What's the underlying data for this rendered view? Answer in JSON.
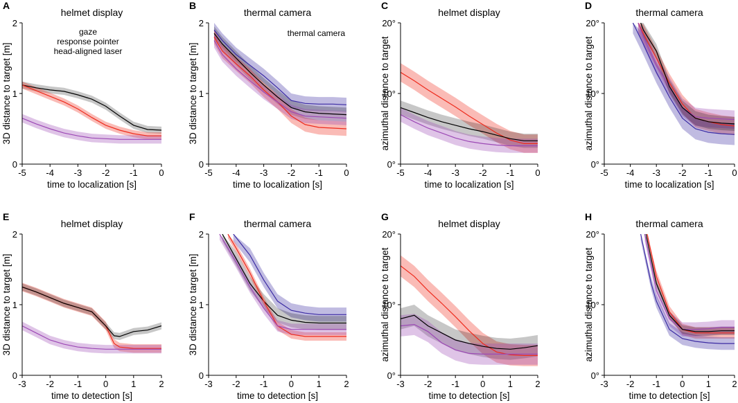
{
  "colors": {
    "gaze": "#000000",
    "pointer": "#ee2b1d",
    "laser": "#9c49b5",
    "camera": "#3b2ba3"
  },
  "legend_entries": [
    "gaze",
    "response pointer",
    "head-aligned laser"
  ],
  "chart_data": [
    {
      "panel": "A",
      "type": "line",
      "title": "helmet display",
      "xlabel": "time to localization [s]",
      "ylabel": "3D distance to target [m]",
      "xlim": [
        -5,
        0
      ],
      "ylim": [
        0,
        2
      ],
      "xticks": [
        "-5",
        "-4",
        "-3",
        "-2",
        "-1",
        "0"
      ],
      "yticks": [
        "0",
        "1",
        "2"
      ],
      "legend": [
        "gaze",
        "response pointer",
        "head-aligned laser"
      ],
      "series": [
        {
          "name": "gaze",
          "color": "gaze",
          "x": [
            -5,
            -4.5,
            -4,
            -3.5,
            -3,
            -2.5,
            -2,
            -1.5,
            -1,
            -0.5,
            0
          ],
          "values": [
            1.12,
            1.08,
            1.05,
            1.03,
            0.98,
            0.92,
            0.82,
            0.68,
            0.55,
            0.49,
            0.48
          ],
          "band": 0.05
        },
        {
          "name": "response pointer",
          "color": "pointer",
          "x": [
            -5,
            -4.5,
            -4,
            -3.5,
            -3,
            -2.5,
            -2,
            -1.5,
            -1,
            -0.5,
            0
          ],
          "values": [
            1.12,
            1.04,
            0.96,
            0.88,
            0.78,
            0.66,
            0.55,
            0.48,
            0.43,
            0.4,
            0.4
          ],
          "band": 0.05
        },
        {
          "name": "head-aligned laser",
          "color": "laser",
          "x": [
            -5,
            -4.5,
            -4,
            -3.5,
            -3,
            -2.5,
            -2,
            -1.5,
            -1,
            -0.5,
            0
          ],
          "values": [
            0.65,
            0.57,
            0.5,
            0.44,
            0.4,
            0.37,
            0.36,
            0.35,
            0.35,
            0.35,
            0.35
          ],
          "band": 0.06
        }
      ]
    },
    {
      "panel": "B",
      "type": "line",
      "title": "thermal camera",
      "xlabel": "time to localization [s]",
      "ylabel": "3D distance to target [m]",
      "xlim": [
        -5,
        0
      ],
      "ylim": [
        0,
        2
      ],
      "xticks": [
        "-5",
        "-4",
        "-3",
        "-2",
        "-1",
        "0"
      ],
      "yticks": [
        "0",
        "1",
        "2"
      ],
      "legend": [
        "thermal camera"
      ],
      "series": [
        {
          "name": "thermal camera",
          "color": "camera",
          "x": [
            -4.8,
            -4.5,
            -4,
            -3.5,
            -3,
            -2.5,
            -2,
            -1.5,
            -1,
            -0.5,
            0
          ],
          "values": [
            1.9,
            1.75,
            1.55,
            1.4,
            1.25,
            1.08,
            0.9,
            0.86,
            0.85,
            0.85,
            0.84
          ],
          "band": 0.1
        },
        {
          "name": "gaze",
          "color": "gaze",
          "x": [
            -4.8,
            -4.5,
            -4,
            -3.5,
            -3,
            -2.5,
            -2,
            -1.5,
            -1,
            -0.5,
            0
          ],
          "values": [
            1.85,
            1.7,
            1.5,
            1.3,
            1.12,
            0.95,
            0.8,
            0.74,
            0.72,
            0.71,
            0.7
          ],
          "band": 0.1
        },
        {
          "name": "response pointer",
          "color": "pointer",
          "x": [
            -4.8,
            -4.5,
            -4,
            -3.5,
            -3,
            -2.5,
            -2,
            -1.5,
            -1,
            -0.5,
            0
          ],
          "values": [
            1.8,
            1.6,
            1.42,
            1.25,
            1.05,
            0.88,
            0.68,
            0.56,
            0.52,
            0.51,
            0.5
          ],
          "band": 0.1
        },
        {
          "name": "head-aligned laser",
          "color": "laser",
          "x": [
            -4.8,
            -4.5,
            -4,
            -3.5,
            -3,
            -2.5,
            -2,
            -1.5,
            -1,
            -0.5,
            0
          ],
          "values": [
            1.75,
            1.55,
            1.35,
            1.18,
            1.02,
            0.88,
            0.74,
            0.68,
            0.67,
            0.66,
            0.65
          ],
          "band": 0.1
        }
      ]
    },
    {
      "panel": "C",
      "type": "line",
      "title": "helmet display",
      "xlabel": "time to localization [s]",
      "ylabel": "azimuthal distance to target",
      "xlim": [
        -5,
        0
      ],
      "ylim": [
        0,
        20
      ],
      "xticks": [
        "-5",
        "-4",
        "-3",
        "-2",
        "-1",
        "0"
      ],
      "yticks": [
        "0°",
        "10°",
        "20°"
      ],
      "series": [
        {
          "name": "response pointer",
          "color": "pointer",
          "x": [
            -5,
            -4.5,
            -4,
            -3.5,
            -3,
            -2.5,
            -2,
            -1.5,
            -1,
            -0.5,
            0
          ],
          "values": [
            13,
            11.8,
            10.5,
            9.3,
            8.1,
            6.8,
            5.6,
            4.4,
            3.4,
            2.9,
            2.9
          ],
          "band": 1.3
        },
        {
          "name": "gaze",
          "color": "gaze",
          "x": [
            -5,
            -4.5,
            -4,
            -3.5,
            -3,
            -2.5,
            -2,
            -1.5,
            -1,
            -0.5,
            0
          ],
          "values": [
            8,
            7.3,
            6.6,
            6,
            5.5,
            5,
            4.6,
            4.1,
            3.6,
            3.3,
            3.3
          ],
          "band": 1.0
        },
        {
          "name": "head-aligned laser",
          "color": "laser",
          "x": [
            -5,
            -4.5,
            -4,
            -3.5,
            -3,
            -2.5,
            -2,
            -1.5,
            -1,
            -0.5,
            0
          ],
          "values": [
            7,
            6,
            5.1,
            4.4,
            3.7,
            3.2,
            2.9,
            2.7,
            2.6,
            2.6,
            2.6
          ],
          "band": 1.0
        }
      ]
    },
    {
      "panel": "D",
      "type": "line",
      "title": "thermal camera",
      "xlabel": "time to localization [s]",
      "ylabel": "azimuthal distance to target",
      "xlim": [
        -5,
        0
      ],
      "ylim": [
        0,
        20
      ],
      "xticks": [
        "-5",
        "-4",
        "-3",
        "-2",
        "-1",
        "0"
      ],
      "yticks": [
        "0°",
        "10°",
        "20°"
      ],
      "series": [
        {
          "name": "response pointer",
          "color": "pointer",
          "x": [
            -3.7,
            -3.5,
            -3,
            -2.5,
            -2,
            -1.5,
            -1,
            -0.5,
            0
          ],
          "values": [
            20,
            18.5,
            15,
            11.5,
            8.5,
            6.5,
            6,
            5.6,
            5.4
          ],
          "band": 1.3
        },
        {
          "name": "head-aligned laser",
          "color": "laser",
          "x": [
            -3.7,
            -3.5,
            -3,
            -2.5,
            -2,
            -1.5,
            -1,
            -0.5,
            0
          ],
          "values": [
            20,
            18,
            14,
            11,
            8,
            6.7,
            6.5,
            6.4,
            6.3
          ],
          "band": 1.3
        },
        {
          "name": "thermal camera",
          "color": "camera",
          "x": [
            -3.9,
            -3.5,
            -3,
            -2.5,
            -2,
            -1.5,
            -1,
            -0.5,
            0
          ],
          "values": [
            20,
            17,
            13,
            9.5,
            6.5,
            5,
            4.5,
            4.3,
            4.2
          ],
          "band": 1.5
        },
        {
          "name": "gaze",
          "color": "gaze",
          "x": [
            -3.6,
            -3.5,
            -3,
            -2.5,
            -2,
            -1.5,
            -1,
            -0.5,
            0
          ],
          "values": [
            20,
            19,
            16,
            11,
            8,
            6.5,
            6,
            5.8,
            5.7
          ],
          "band": 1.0
        }
      ]
    },
    {
      "panel": "E",
      "type": "line",
      "title": "helmet display",
      "xlabel": "time to detection [s]",
      "ylabel": "3D distance to target [m]",
      "xlim": [
        -3,
        2
      ],
      "ylim": [
        0,
        2
      ],
      "xticks": [
        "-3",
        "-2",
        "-1",
        "0",
        "1",
        "2"
      ],
      "yticks": [
        "0",
        "1",
        "2"
      ],
      "series": [
        {
          "name": "response pointer",
          "color": "pointer",
          "x": [
            -3,
            -2.5,
            -2,
            -1.5,
            -1,
            -0.5,
            0,
            0.3,
            0.5,
            1,
            1.5,
            2
          ],
          "values": [
            1.25,
            1.18,
            1.1,
            1.02,
            0.96,
            0.9,
            0.7,
            0.45,
            0.4,
            0.38,
            0.38,
            0.38
          ],
          "band": 0.06
        },
        {
          "name": "gaze",
          "color": "gaze",
          "x": [
            -3,
            -2.5,
            -2,
            -1.5,
            -1,
            -0.5,
            0,
            0.3,
            0.5,
            1,
            1.5,
            2
          ],
          "values": [
            1.25,
            1.18,
            1.1,
            1.02,
            0.96,
            0.9,
            0.7,
            0.56,
            0.55,
            0.62,
            0.64,
            0.7
          ],
          "band": 0.05
        },
        {
          "name": "head-aligned laser",
          "color": "laser",
          "x": [
            -3,
            -2.5,
            -2,
            -1.5,
            -1,
            -0.5,
            0,
            0.5,
            1,
            1.5,
            2
          ],
          "values": [
            0.7,
            0.6,
            0.5,
            0.44,
            0.4,
            0.38,
            0.37,
            0.37,
            0.37,
            0.37,
            0.37
          ],
          "band": 0.06
        }
      ]
    },
    {
      "panel": "F",
      "type": "line",
      "title": "thermal camera",
      "xlabel": "time to detection [s]",
      "ylabel": "3D distance to target [m]",
      "xlim": [
        -3,
        2
      ],
      "ylim": [
        0,
        2
      ],
      "xticks": [
        "-3",
        "-2",
        "-1",
        "0",
        "1",
        "2"
      ],
      "yticks": [
        "0",
        "1",
        "2"
      ],
      "series": [
        {
          "name": "thermal camera",
          "color": "camera",
          "x": [
            -2.1,
            -1.5,
            -1,
            -0.5,
            0,
            0.5,
            1,
            1.5,
            2
          ],
          "values": [
            2,
            1.7,
            1.35,
            1.05,
            0.92,
            0.88,
            0.86,
            0.86,
            0.86
          ],
          "band": 0.1
        },
        {
          "name": "gaze",
          "color": "gaze",
          "x": [
            -2.5,
            -2,
            -1.5,
            -1,
            -0.5,
            0,
            0.5,
            1,
            1.5,
            2
          ],
          "values": [
            2,
            1.65,
            1.3,
            1.05,
            0.85,
            0.78,
            0.75,
            0.74,
            0.74,
            0.74
          ],
          "band": 0.1
        },
        {
          "name": "response pointer",
          "color": "pointer",
          "x": [
            -2.3,
            -2,
            -1.5,
            -1,
            -0.5,
            0,
            0.5,
            1,
            1.5,
            2
          ],
          "values": [
            2,
            1.8,
            1.45,
            1.05,
            0.7,
            0.58,
            0.55,
            0.55,
            0.55,
            0.55
          ],
          "band": 0.06
        },
        {
          "name": "head-aligned laser",
          "color": "laser",
          "x": [
            -2.6,
            -2,
            -1.5,
            -1,
            -0.5,
            0,
            0.5,
            1,
            1.5,
            2
          ],
          "values": [
            2,
            1.6,
            1.25,
            0.95,
            0.7,
            0.65,
            0.65,
            0.65,
            0.65,
            0.65
          ],
          "band": 0.08
        }
      ]
    },
    {
      "panel": "G",
      "type": "line",
      "title": "helmet display",
      "xlabel": "time to detection [s]",
      "ylabel": "azimuthal distance to target",
      "xlim": [
        -3,
        2
      ],
      "ylim": [
        0,
        20
      ],
      "xticks": [
        "-3",
        "-2",
        "-1",
        "0",
        "1",
        "2"
      ],
      "yticks": [
        "0°",
        "10°",
        "20°"
      ],
      "series": [
        {
          "name": "response pointer",
          "color": "pointer",
          "x": [
            -3,
            -2.5,
            -2,
            -1.5,
            -1,
            -0.5,
            0,
            0.5,
            1,
            1.5,
            2
          ],
          "values": [
            15.5,
            14,
            12,
            10.2,
            8.3,
            6.3,
            4.5,
            3.3,
            2.9,
            2.8,
            2.8
          ],
          "band": 1.5
        },
        {
          "name": "gaze",
          "color": "gaze",
          "x": [
            -3,
            -2.5,
            -2,
            -1.5,
            -1,
            -0.5,
            0,
            0.5,
            1,
            1.5,
            2
          ],
          "values": [
            8,
            8.5,
            7,
            6,
            5,
            4.5,
            4.1,
            3.8,
            3.7,
            3.9,
            4.2
          ],
          "band": 1.5
        },
        {
          "name": "head-aligned laser",
          "color": "laser",
          "x": [
            -3,
            -2.5,
            -2,
            -1.5,
            -1,
            -0.5,
            0,
            0.5,
            1,
            1.5,
            2
          ],
          "values": [
            7,
            7.2,
            6.2,
            4.6,
            3.6,
            3.1,
            3,
            3,
            3,
            3,
            3
          ],
          "band": 1.5
        }
      ]
    },
    {
      "panel": "H",
      "type": "line",
      "title": "thermal camera",
      "xlabel": "time to detection [s]",
      "ylabel": "azimuthal distance to target",
      "xlim": [
        -3,
        2
      ],
      "ylim": [
        0,
        20
      ],
      "xticks": [
        "-3",
        "-2",
        "-1",
        "0",
        "1",
        "2"
      ],
      "yticks": [
        "0°",
        "10°",
        "20°"
      ],
      "series": [
        {
          "name": "response pointer",
          "color": "pointer",
          "x": [
            -1.35,
            -1,
            -0.5,
            0,
            0.5,
            1,
            1.5,
            2
          ],
          "values": [
            20,
            14,
            9,
            6.5,
            6,
            6,
            6,
            6
          ],
          "band": 0.8
        },
        {
          "name": "head-aligned laser",
          "color": "laser",
          "x": [
            -1.45,
            -1,
            -0.5,
            0,
            0.5,
            1,
            1.5,
            2
          ],
          "values": [
            20,
            12,
            8,
            6.5,
            6.5,
            6.6,
            6.8,
            6.8
          ],
          "band": 1.0
        },
        {
          "name": "thermal camera",
          "color": "camera",
          "x": [
            -1.6,
            -1.2,
            -1,
            -0.5,
            0,
            0.5,
            1,
            1.5,
            2
          ],
          "values": [
            20,
            13,
            10.5,
            6.5,
            5.2,
            4.8,
            4.6,
            4.5,
            4.5
          ],
          "band": 0.9
        },
        {
          "name": "gaze",
          "color": "gaze",
          "x": [
            -1.4,
            -1,
            -0.5,
            0,
            0.5,
            1,
            1.5,
            2
          ],
          "values": [
            20,
            13,
            8.5,
            6.5,
            6.2,
            6.2,
            6.3,
            6.3
          ],
          "band": 0.6
        }
      ]
    }
  ]
}
